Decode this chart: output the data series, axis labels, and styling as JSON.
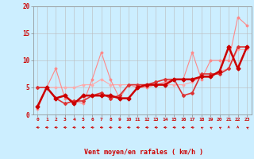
{
  "x_range": [
    -0.5,
    23.5
  ],
  "y_range": [
    0,
    20
  ],
  "xlabel": "Vent moyen/en rafales ( km/h )",
  "background_color": "#cceeff",
  "grid_color": "#bbbbbb",
  "series": [
    {
      "x": [
        0,
        1,
        2,
        3,
        4,
        5,
        6,
        7,
        8,
        9,
        10,
        11,
        12,
        13,
        14,
        15,
        16,
        17,
        18,
        19,
        20,
        21,
        22,
        23
      ],
      "y": [
        5.0,
        5.0,
        5.0,
        5.0,
        5.0,
        5.5,
        5.5,
        6.5,
        5.5,
        5.5,
        5.5,
        5.5,
        5.5,
        5.5,
        5.5,
        5.5,
        5.5,
        6.0,
        7.0,
        7.0,
        8.0,
        8.5,
        12.0,
        12.0
      ],
      "color": "#ffaaaa",
      "lw": 0.8,
      "marker": "D",
      "ms": 1.5,
      "ls": "-"
    },
    {
      "x": [
        0,
        1,
        2,
        3,
        4,
        5,
        6,
        7,
        8,
        9,
        10,
        11,
        12,
        13,
        14,
        15,
        16,
        17,
        18,
        19,
        20,
        21,
        22,
        23
      ],
      "y": [
        1.0,
        5.0,
        8.5,
        3.0,
        2.5,
        2.0,
        6.5,
        11.5,
        6.5,
        3.0,
        5.5,
        5.0,
        5.0,
        5.5,
        6.0,
        6.5,
        6.5,
        11.5,
        6.5,
        10.0,
        10.0,
        10.0,
        18.0,
        16.5
      ],
      "color": "#ff8888",
      "lw": 0.8,
      "marker": "D",
      "ms": 1.5,
      "ls": "-"
    },
    {
      "x": [
        0,
        1,
        2,
        3,
        4,
        5,
        6,
        7,
        8,
        9,
        10,
        11,
        12,
        13,
        14,
        15,
        16,
        17,
        18,
        19,
        20,
        21,
        22,
        23
      ],
      "y": [
        5.0,
        5.0,
        3.0,
        2.0,
        2.5,
        2.5,
        3.5,
        4.0,
        3.0,
        3.5,
        5.5,
        5.5,
        5.5,
        6.0,
        6.5,
        6.5,
        3.5,
        4.0,
        7.5,
        7.5,
        7.5,
        8.5,
        12.5,
        12.5
      ],
      "color": "#dd3333",
      "lw": 1.2,
      "marker": "D",
      "ms": 2.0,
      "ls": "-"
    },
    {
      "x": [
        0,
        1,
        2,
        3,
        4,
        5,
        6,
        7,
        8,
        9,
        10,
        11,
        12,
        13,
        14,
        15,
        16,
        17,
        18,
        19,
        20,
        21,
        22,
        23
      ],
      "y": [
        1.5,
        5.0,
        3.0,
        3.5,
        2.0,
        3.5,
        3.5,
        3.5,
        3.5,
        3.0,
        3.0,
        5.0,
        5.5,
        5.5,
        5.5,
        6.5,
        6.5,
        6.5,
        7.0,
        7.0,
        8.0,
        12.5,
        8.5,
        12.5
      ],
      "color": "#cc0000",
      "lw": 1.8,
      "marker": "D",
      "ms": 2.5,
      "ls": "-"
    }
  ],
  "wind_arrows": {
    "x": [
      0,
      1,
      2,
      3,
      4,
      5,
      6,
      7,
      8,
      9,
      10,
      11,
      12,
      13,
      14,
      15,
      16,
      17,
      18,
      19,
      20,
      21,
      22,
      23
    ],
    "angles_deg": [
      270,
      270,
      270,
      270,
      270,
      270,
      270,
      270,
      270,
      270,
      270,
      270,
      270,
      270,
      270,
      270,
      270,
      270,
      315,
      315,
      315,
      0,
      0,
      315
    ]
  },
  "yticks": [
    0,
    5,
    10,
    15,
    20
  ],
  "xticks": [
    0,
    1,
    2,
    3,
    4,
    5,
    6,
    7,
    8,
    9,
    10,
    11,
    12,
    13,
    14,
    15,
    16,
    17,
    18,
    19,
    20,
    21,
    22,
    23
  ]
}
